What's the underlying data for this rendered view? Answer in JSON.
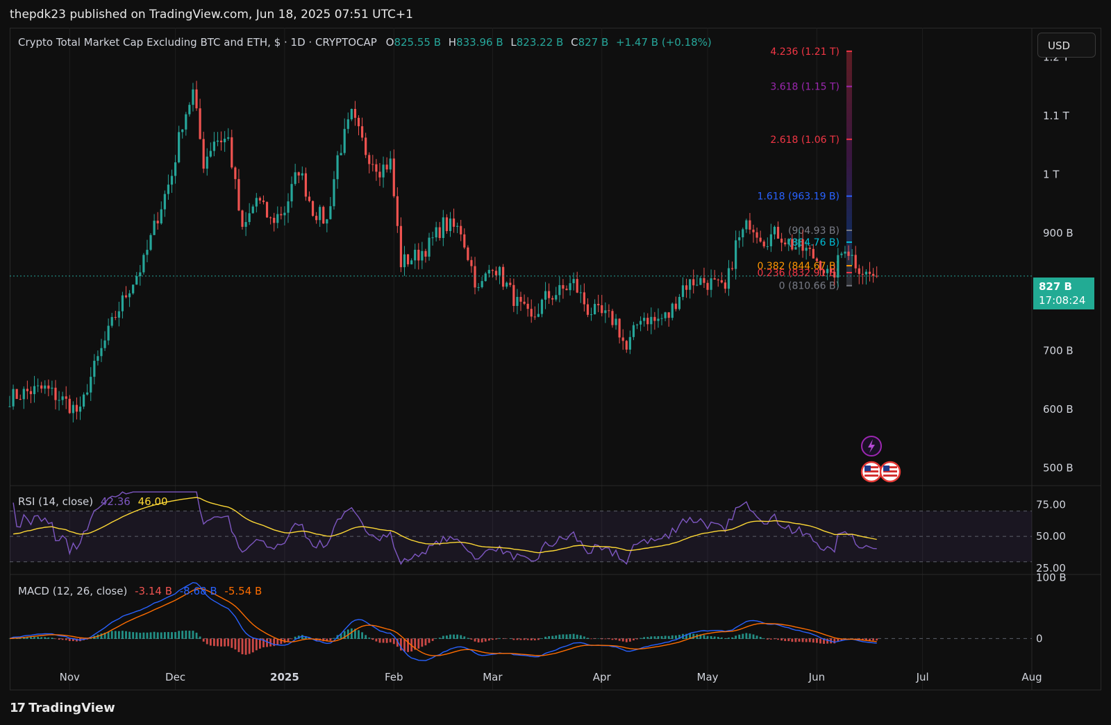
{
  "header": {
    "publisher": "thepdk23 published on TradingView.com, Jun 18, 2025 07:51 UTC+1"
  },
  "legend": {
    "title": "Crypto Total Market Cap Excluding BTC and ETH, $ · 1D · CRYPTOCAP",
    "o_label": "O",
    "o": "825.55 B",
    "h_label": "H",
    "h": "833.96 B",
    "l_label": "L",
    "l": "823.22 B",
    "c_label": "C",
    "c": "827 B",
    "change": "+1.47 B (+0.18%)"
  },
  "currency_button": "USD",
  "last_price": {
    "value": "827 B",
    "countdown": "17:08:24"
  },
  "colors": {
    "up": "#26a69a",
    "down": "#ef5350",
    "rsi": "#7e57c2",
    "rsi_ma": "#fdd835",
    "macd": "#2962ff",
    "signal": "#ff6d00",
    "tag": "#22ab94"
  },
  "icons": [
    "lightning-event-icon",
    "us-flag-event-icon",
    "us-flag-event-icon"
  ],
  "chart_data": {
    "type": "candlestick",
    "x_ticks": [
      {
        "label": "Nov",
        "date": "2024-11-01"
      },
      {
        "label": "Dec",
        "date": "2024-12-01"
      },
      {
        "label": "2025",
        "date": "2025-01-01"
      },
      {
        "label": "Feb",
        "date": "2025-02-01"
      },
      {
        "label": "Mar",
        "date": "2025-03-01"
      },
      {
        "label": "Apr",
        "date": "2025-04-01"
      },
      {
        "label": "May",
        "date": "2025-05-01"
      },
      {
        "label": "Jun",
        "date": "2025-06-01"
      },
      {
        "label": "Jul",
        "date": "2025-07-01"
      },
      {
        "label": "Aug",
        "date": "2025-08-01"
      }
    ],
    "x_range": [
      "2024-10-15",
      "2025-08-01"
    ],
    "y_ticks": [
      {
        "label": "1.2 T",
        "value": 1200
      },
      {
        "label": "1.1 T",
        "value": 1100
      },
      {
        "label": "1 T",
        "value": 1000
      },
      {
        "label": "900 B",
        "value": 900
      },
      {
        "label": "700 B",
        "value": 700
      },
      {
        "label": "600 B",
        "value": 600
      },
      {
        "label": "500 B",
        "value": 500
      }
    ],
    "y_unit": "B",
    "ylim": [
      470,
      1250
    ],
    "last_close": 827,
    "price_path": [
      [
        "2024-10-15",
        620
      ],
      [
        "2024-10-20",
        630
      ],
      [
        "2024-10-25",
        635
      ],
      [
        "2024-10-31",
        612
      ],
      [
        "2024-11-04",
        592
      ],
      [
        "2024-11-06",
        640
      ],
      [
        "2024-11-10",
        700
      ],
      [
        "2024-11-14",
        760
      ],
      [
        "2024-11-18",
        808
      ],
      [
        "2024-11-22",
        850
      ],
      [
        "2024-11-26",
        930
      ],
      [
        "2024-11-30",
        1000
      ],
      [
        "2024-12-03",
        1090
      ],
      [
        "2024-12-06",
        1140
      ],
      [
        "2024-12-09",
        1020
      ],
      [
        "2024-12-12",
        1060
      ],
      [
        "2024-12-16",
        1060
      ],
      [
        "2024-12-20",
        900
      ],
      [
        "2024-12-24",
        960
      ],
      [
        "2024-12-28",
        920
      ],
      [
        "2025-01-01",
        940
      ],
      [
        "2025-01-05",
        1010
      ],
      [
        "2025-01-09",
        940
      ],
      [
        "2025-01-13",
        920
      ],
      [
        "2025-01-16",
        1030
      ],
      [
        "2025-01-20",
        1100
      ],
      [
        "2025-01-24",
        1040
      ],
      [
        "2025-01-28",
        1010
      ],
      [
        "2025-01-31",
        1020
      ],
      [
        "2025-02-03",
        850
      ],
      [
        "2025-02-07",
        860
      ],
      [
        "2025-02-11",
        880
      ],
      [
        "2025-02-15",
        915
      ],
      [
        "2025-02-20",
        905
      ],
      [
        "2025-02-25",
        800
      ],
      [
        "2025-03-01",
        850
      ],
      [
        "2025-03-04",
        820
      ],
      [
        "2025-03-08",
        780
      ],
      [
        "2025-03-12",
        750
      ],
      [
        "2025-03-16",
        790
      ],
      [
        "2025-03-20",
        800
      ],
      [
        "2025-03-24",
        815
      ],
      [
        "2025-03-28",
        770
      ],
      [
        "2025-04-01",
        760
      ],
      [
        "2025-04-05",
        750
      ],
      [
        "2025-04-08",
        700
      ],
      [
        "2025-04-12",
        760
      ],
      [
        "2025-04-16",
        750
      ],
      [
        "2025-04-20",
        760
      ],
      [
        "2025-04-24",
        810
      ],
      [
        "2025-04-28",
        820
      ],
      [
        "2025-05-02",
        815
      ],
      [
        "2025-05-06",
        800
      ],
      [
        "2025-05-09",
        880
      ],
      [
        "2025-05-13",
        920
      ],
      [
        "2025-05-17",
        890
      ],
      [
        "2025-05-21",
        900
      ],
      [
        "2025-05-25",
        880
      ],
      [
        "2025-05-29",
        870
      ],
      [
        "2025-06-02",
        850
      ],
      [
        "2025-06-05",
        820
      ],
      [
        "2025-06-09",
        880
      ],
      [
        "2025-06-12",
        850
      ],
      [
        "2025-06-15",
        830
      ],
      [
        "2025-06-18",
        827
      ]
    ],
    "fibonacci": [
      {
        "label": "4.236 (1.21 T)",
        "value": 1210,
        "color": "#f23645"
      },
      {
        "label": "3.618 (1.15 T)",
        "value": 1150,
        "color": "#9c27b0"
      },
      {
        "label": "2.618 (1.06 T)",
        "value": 1060,
        "color": "#f23645"
      },
      {
        "label": "1.618 (963.19 B)",
        "value": 963.19,
        "color": "#2962ff"
      },
      {
        "label": "(904.93 B)",
        "value": 904.93,
        "color": "#787b86"
      },
      {
        "label": "(884.76 B)",
        "value": 884.76,
        "color": "#00bcd4"
      },
      {
        "label": "0.382 (844.67 B)",
        "value": 844.67,
        "color": "#ff9800"
      },
      {
        "label": "0.236 (832.91 B)",
        "value": 832.91,
        "color": "#f23645"
      },
      {
        "label": "0 (810.66 B)",
        "value": 810.66,
        "color": "#787b86"
      }
    ],
    "rsi": {
      "label": "RSI (14, close)",
      "value": "42.36",
      "ma_value": "46.00",
      "y_ticks": [
        {
          "label": "75.00",
          "value": 75
        },
        {
          "label": "50.00",
          "value": 50
        },
        {
          "label": "25.00",
          "value": 25
        }
      ],
      "ylim": [
        20,
        90
      ]
    },
    "macd": {
      "label": "MACD (12, 26, close)",
      "histogram": "-3.14 B",
      "macd": "-8.68 B",
      "signal": "-5.54 B",
      "y_ticks": [
        {
          "label": "100 B",
          "value": 100
        },
        {
          "label": "0",
          "value": 0
        }
      ],
      "ylim": [
        -45,
        105
      ]
    }
  }
}
